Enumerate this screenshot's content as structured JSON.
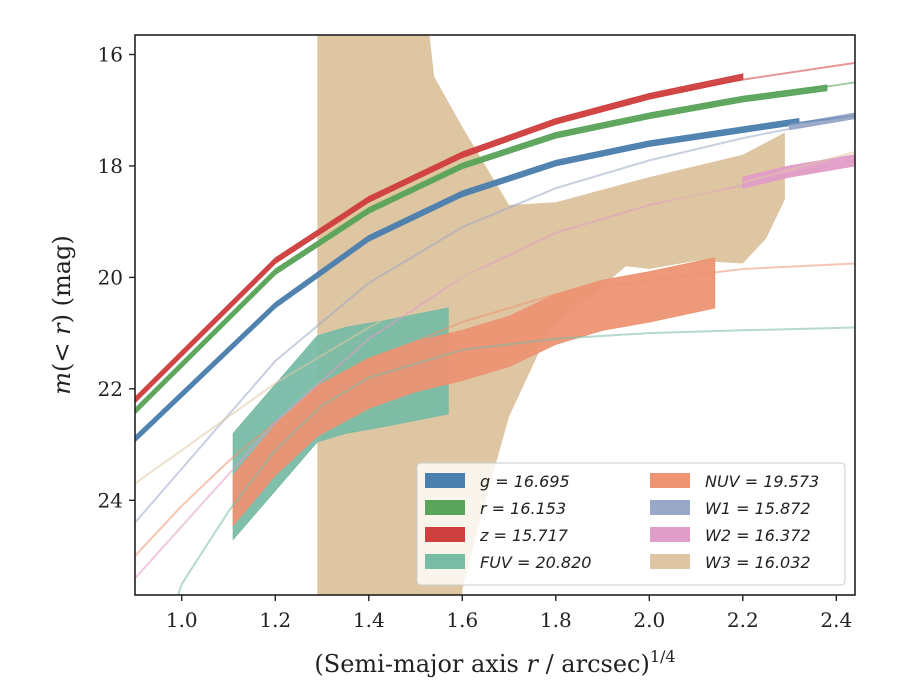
{
  "chart_data": {
    "type": "line",
    "xlabel": "(Semi-major axis r / arcsec)^1/4",
    "ylabel": "m(< r) (mag)",
    "xlim": [
      0.9,
      2.44
    ],
    "ylim": [
      25.7,
      15.65
    ],
    "y_inverted": true,
    "xticks": [
      1.0,
      1.2,
      1.4,
      1.6,
      1.8,
      2.0,
      2.2,
      2.4
    ],
    "yticks": [
      16,
      18,
      20,
      22,
      24
    ],
    "xtick_labels": [
      "1.0",
      "1.2",
      "1.4",
      "1.6",
      "1.8",
      "2.0",
      "2.2",
      "2.4"
    ],
    "ytick_labels": [
      "16",
      "18",
      "20",
      "22",
      "24"
    ],
    "legend_placement": "lower-right",
    "series": [
      {
        "name": "g = 16.695",
        "color": "#4c7fae",
        "band": {
          "x": [
            0.9,
            1.2,
            1.4,
            1.6,
            1.8,
            2.0,
            2.2,
            2.32
          ],
          "y": [
            22.9,
            20.5,
            19.3,
            18.5,
            17.95,
            17.6,
            17.35,
            17.2
          ],
          "half_width": 0.05
        },
        "model": {
          "x": [
            0.9,
            1.2,
            1.4,
            1.6,
            1.8,
            2.0,
            2.2,
            2.44
          ],
          "y": [
            22.9,
            20.5,
            19.3,
            18.5,
            17.95,
            17.6,
            17.35,
            17.1
          ]
        }
      },
      {
        "name": "r = 16.153",
        "color": "#5ba45b",
        "band": {
          "x": [
            0.9,
            1.2,
            1.4,
            1.6,
            1.8,
            2.0,
            2.2,
            2.38
          ],
          "y": [
            22.4,
            19.9,
            18.8,
            18.0,
            17.45,
            17.1,
            16.8,
            16.6
          ],
          "half_width": 0.05
        },
        "model": {
          "x": [
            0.9,
            1.2,
            1.4,
            1.6,
            1.8,
            2.0,
            2.2,
            2.44
          ],
          "y": [
            22.4,
            19.9,
            18.8,
            18.0,
            17.45,
            17.1,
            16.8,
            16.5
          ]
        }
      },
      {
        "name": "z = 15.717",
        "color": "#d03f3f",
        "band": {
          "x": [
            0.9,
            1.2,
            1.4,
            1.6,
            1.8,
            2.0,
            2.2
          ],
          "y": [
            22.2,
            19.7,
            18.6,
            17.8,
            17.2,
            16.75,
            16.4
          ],
          "half_width": 0.05
        },
        "model": {
          "x": [
            0.9,
            1.2,
            1.4,
            1.6,
            1.8,
            2.0,
            2.2,
            2.44
          ],
          "y": [
            22.2,
            19.7,
            18.6,
            17.8,
            17.2,
            16.75,
            16.45,
            16.15
          ]
        }
      },
      {
        "name": "FUV = 20.820",
        "color": "#78bca6",
        "band": {
          "x": [
            1.11,
            1.29,
            1.35,
            1.45,
            1.57
          ],
          "y": [
            23.75,
            22.0,
            21.85,
            21.7,
            21.5
          ],
          "half_width": 0.95
        },
        "model": {
          "x": [
            0.9,
            1.0,
            1.1,
            1.2,
            1.3,
            1.4,
            1.6,
            1.8,
            2.0,
            2.2,
            2.44
          ],
          "y": [
            28.0,
            25.5,
            24.2,
            23.1,
            22.3,
            21.8,
            21.3,
            21.1,
            21.0,
            20.95,
            20.9
          ]
        }
      },
      {
        "name": "NUV = 19.573",
        "color": "#ec9473",
        "band": {
          "x": [
            1.11,
            1.2,
            1.29,
            1.4,
            1.5,
            1.6,
            1.7,
            1.8,
            1.9,
            2.0,
            2.14
          ],
          "y": [
            24.0,
            23.1,
            22.4,
            21.9,
            21.6,
            21.4,
            21.15,
            20.75,
            20.5,
            20.35,
            20.1
          ],
          "half_width": 0.45
        },
        "model": {
          "x": [
            0.9,
            1.0,
            1.1,
            1.2,
            1.4,
            1.6,
            1.8,
            2.0,
            2.2,
            2.44
          ],
          "y": [
            25.0,
            24.1,
            23.3,
            22.6,
            21.5,
            20.8,
            20.3,
            20.05,
            19.85,
            19.75
          ]
        }
      },
      {
        "name": "W1 = 15.872",
        "color": "#9aa8c8",
        "band": {
          "x": [
            2.3,
            2.44
          ],
          "y": [
            17.3,
            17.1
          ],
          "half_width": 0.05
        },
        "model": {
          "x": [
            0.9,
            1.2,
            1.4,
            1.6,
            1.8,
            2.0,
            2.2,
            2.44
          ],
          "y": [
            24.4,
            21.5,
            20.1,
            19.1,
            18.4,
            17.9,
            17.5,
            17.1
          ]
        }
      },
      {
        "name": "W2 = 16.372",
        "color": "#e09dc7",
        "band": {
          "x": [
            2.2,
            2.3,
            2.44
          ],
          "y": [
            18.3,
            18.1,
            17.9
          ],
          "half_width": 0.1
        },
        "model": {
          "x": [
            0.9,
            1.2,
            1.4,
            1.6,
            1.8,
            2.0,
            2.2,
            2.44
          ],
          "y": [
            25.4,
            22.6,
            21.1,
            20.0,
            19.2,
            18.7,
            18.35,
            17.9
          ]
        }
      },
      {
        "name": "W3 = 16.032",
        "color": "#dfc6a2",
        "polygon_upper": {
          "x": [
            1.29,
            1.53,
            1.54,
            1.6,
            1.7,
            1.8,
            2.0,
            2.2,
            2.29
          ],
          "y": [
            15.65,
            15.65,
            16.4,
            17.3,
            18.7,
            18.65,
            18.2,
            17.8,
            17.4
          ]
        },
        "polygon_lower": {
          "x": [
            2.29,
            2.25,
            2.2,
            2.1,
            2.0,
            1.95,
            1.88,
            1.82,
            1.78,
            1.75,
            1.7,
            1.65,
            1.6,
            1.6,
            1.29
          ],
          "y": [
            18.6,
            19.3,
            19.75,
            19.7,
            19.85,
            19.8,
            20.3,
            20.7,
            21.05,
            21.6,
            22.5,
            24.0,
            25.6,
            25.7,
            25.7
          ]
        },
        "model": {
          "x": [
            0.9,
            1.2,
            1.4,
            1.6,
            1.8,
            2.0,
            2.2,
            2.44
          ],
          "y": [
            23.7,
            21.9,
            20.9,
            20.0,
            19.3,
            18.75,
            18.3,
            17.75
          ]
        }
      }
    ],
    "legend": [
      {
        "label": "g = 16.695",
        "color": "#4c7fae"
      },
      {
        "label": "r = 16.153",
        "color": "#5ba45b"
      },
      {
        "label": "z = 15.717",
        "color": "#d03f3f"
      },
      {
        "label": "FUV = 20.820",
        "color": "#78bca6"
      },
      {
        "label": "NUV = 19.573",
        "color": "#ec9473"
      },
      {
        "label": "W1 = 15.872",
        "color": "#9aa8c8"
      },
      {
        "label": "W2 = 16.372",
        "color": "#e09dc7"
      },
      {
        "label": "W3 = 16.032",
        "color": "#dfc6a2"
      }
    ]
  }
}
